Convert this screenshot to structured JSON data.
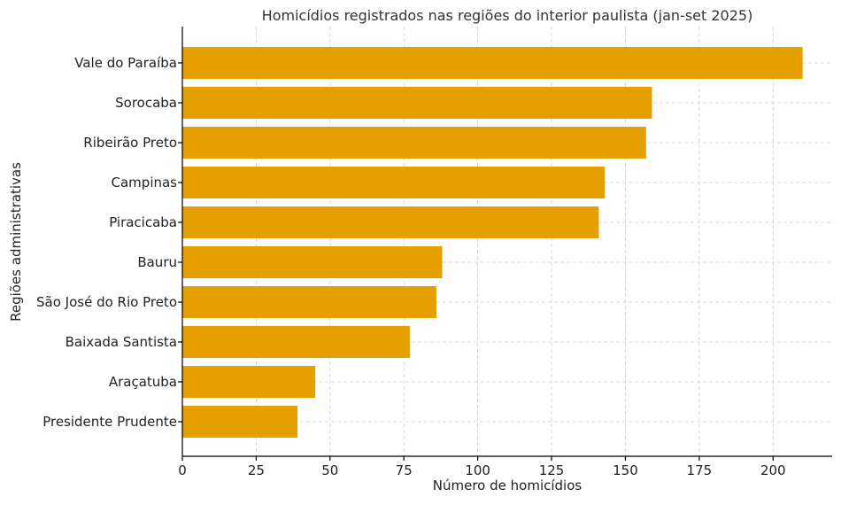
{
  "chart_data": {
    "type": "bar",
    "orientation": "horizontal",
    "title": "Homicídios registrados nas regiões do interior paulista (jan-set 2025)",
    "xlabel": "Número de homicídios",
    "ylabel": "Regiões administrativas",
    "categories": [
      "Vale do Paraíba",
      "Sorocaba",
      "Ribeirão Preto",
      "Campinas",
      "Piracicaba",
      "Bauru",
      "São José do Rio Preto",
      "Baixada Santista",
      "Araçatuba",
      "Presidente Prudente"
    ],
    "values": [
      210,
      159,
      157,
      143,
      141,
      88,
      86,
      77,
      45,
      39
    ],
    "xlim": [
      0,
      220
    ],
    "xticks": [
      0,
      25,
      50,
      75,
      100,
      125,
      150,
      175,
      200
    ],
    "grid": true,
    "bar_color": "#E5A000"
  }
}
